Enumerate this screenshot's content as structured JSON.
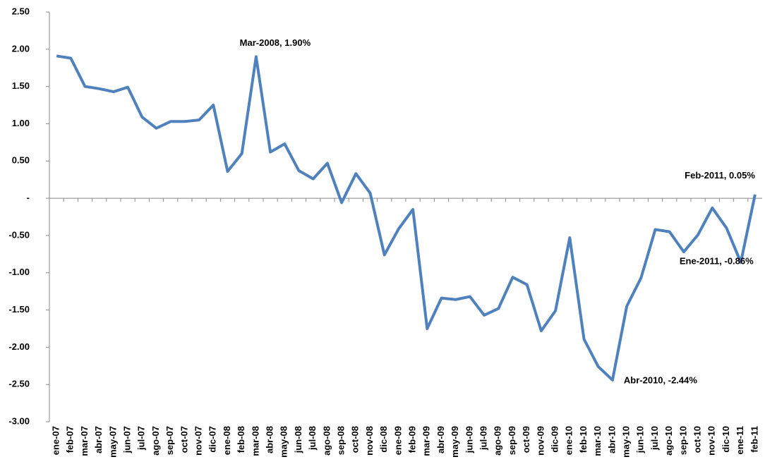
{
  "chart_data": {
    "type": "line",
    "categories": [
      "ene-07",
      "feb-07",
      "mar-07",
      "abr-07",
      "may-07",
      "jun-07",
      "jul-07",
      "ago-07",
      "sep-07",
      "oct-07",
      "nov-07",
      "dic-07",
      "ene-08",
      "feb-08",
      "mar-08",
      "abr-08",
      "may-08",
      "jun-08",
      "jul-08",
      "ago-08",
      "sep-08",
      "oct-08",
      "nov-08",
      "dic-08",
      "ene-09",
      "feb-09",
      "mar-09",
      "abr-09",
      "may-09",
      "jun-09",
      "jul-09",
      "ago-09",
      "sep-09",
      "oct-09",
      "nov-09",
      "dic-09",
      "ene-10",
      "feb-10",
      "mar-10",
      "abr-10",
      "may-10",
      "jun-10",
      "jul-10",
      "ago-10",
      "sep-10",
      "oct-10",
      "nov-10",
      "dic-10",
      "ene-11",
      "feb-11"
    ],
    "series": [
      {
        "color": "#4f81bd",
        "values": [
          1.91,
          1.88,
          1.5,
          1.47,
          1.43,
          1.49,
          1.09,
          0.94,
          1.03,
          1.03,
          1.05,
          1.25,
          0.36,
          0.6,
          1.9,
          0.62,
          0.73,
          0.37,
          0.26,
          0.47,
          -0.06,
          0.33,
          0.07,
          -0.76,
          -0.41,
          -0.15,
          -1.75,
          -1.34,
          -1.36,
          -1.32,
          -1.57,
          -1.48,
          -1.06,
          -1.16,
          -1.78,
          -1.51,
          -0.53,
          -1.89,
          -2.26,
          -2.44,
          -1.45,
          -1.07,
          -0.42,
          -0.45,
          -0.72,
          -0.49,
          -0.13,
          -0.4,
          -0.86,
          0.05
        ]
      }
    ],
    "ylim": [
      -3,
      2.5
    ],
    "yticks": [
      {
        "value": 2.5,
        "label": "2.50"
      },
      {
        "value": 2,
        "label": "2.00"
      },
      {
        "value": 1.5,
        "label": "1.50"
      },
      {
        "value": 1,
        "label": "1.00"
      },
      {
        "value": 0.5,
        "label": "0.50"
      },
      {
        "value": 0,
        "label": "-"
      },
      {
        "value": -0.5,
        "label": "-0.50"
      },
      {
        "value": -1,
        "label": "-1.00"
      },
      {
        "value": -1.5,
        "label": "-1.50"
      },
      {
        "value": -2,
        "label": "-2.00"
      },
      {
        "value": -2.5,
        "label": "-2.50"
      },
      {
        "value": -3,
        "label": "-3.00"
      }
    ],
    "annotations": [
      {
        "text": "Mar-2008,  1.90%",
        "x": "mar-08",
        "y": 1.9
      },
      {
        "text": "Feb-2011,  0.05%",
        "x": "feb-11",
        "y": 0.05
      },
      {
        "text": "Ene-2011, -0.86%",
        "x": "ene-11",
        "y": -0.86
      },
      {
        "text": "Abr-2010, -2.44%",
        "x": "abr-10",
        "y": -2.44
      }
    ]
  }
}
